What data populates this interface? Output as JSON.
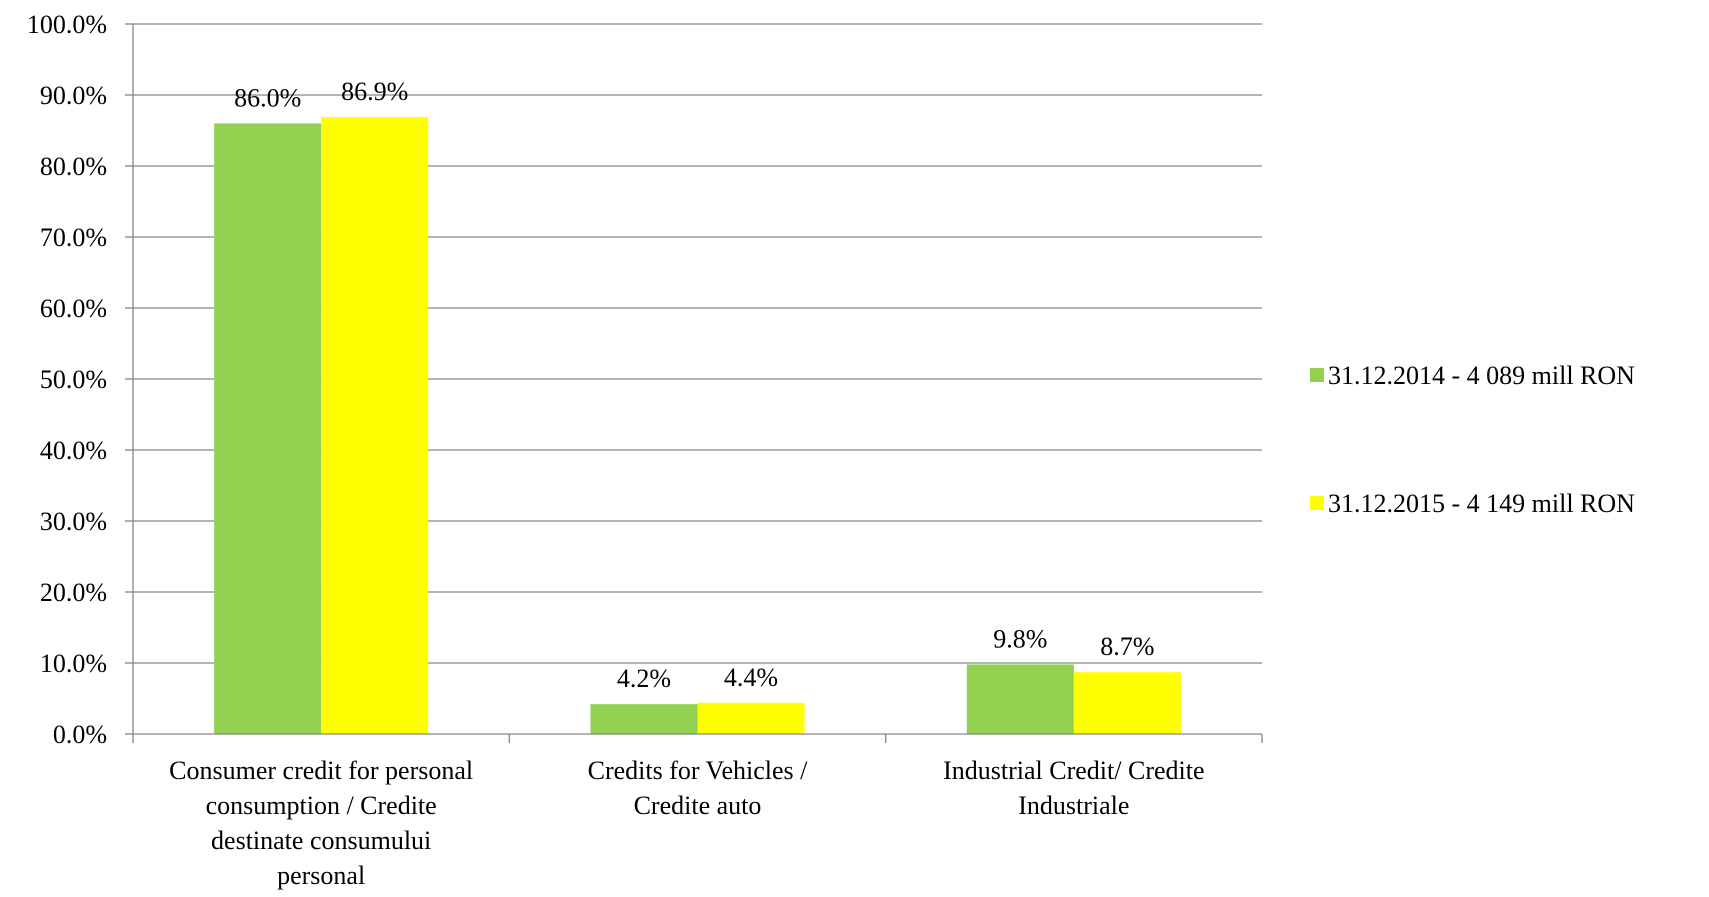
{
  "chart_data": {
    "type": "bar",
    "title": "",
    "xlabel": "",
    "ylabel": "",
    "ylim": [
      0,
      100
    ],
    "yticks": [
      "0.0%",
      "10.0%",
      "20.0%",
      "30.0%",
      "40.0%",
      "50.0%",
      "60.0%",
      "70.0%",
      "80.0%",
      "90.0%",
      "100.0%"
    ],
    "grid": true,
    "legend_position": "right",
    "categories": [
      [
        "Consumer credit for personal",
        "consumption / Credite",
        "destinate consumului",
        "personal"
      ],
      [
        "Credits for Vehicles /",
        "Credite auto"
      ],
      [
        "Industrial Credit/ Credite",
        "Industriale"
      ]
    ],
    "series": [
      {
        "name": "31.12.2014 - 4 089 mill RON",
        "color": "#92D050",
        "values": [
          86.0,
          4.2,
          9.8
        ],
        "labels": [
          "86.0%",
          "4.2%",
          "9.8%"
        ]
      },
      {
        "name": "31.12.2015 - 4 149 mill RON",
        "color": "#FFFF00",
        "values": [
          86.9,
          4.4,
          8.7
        ],
        "labels": [
          "86.9%",
          "4.4%",
          "8.7%"
        ]
      }
    ]
  }
}
